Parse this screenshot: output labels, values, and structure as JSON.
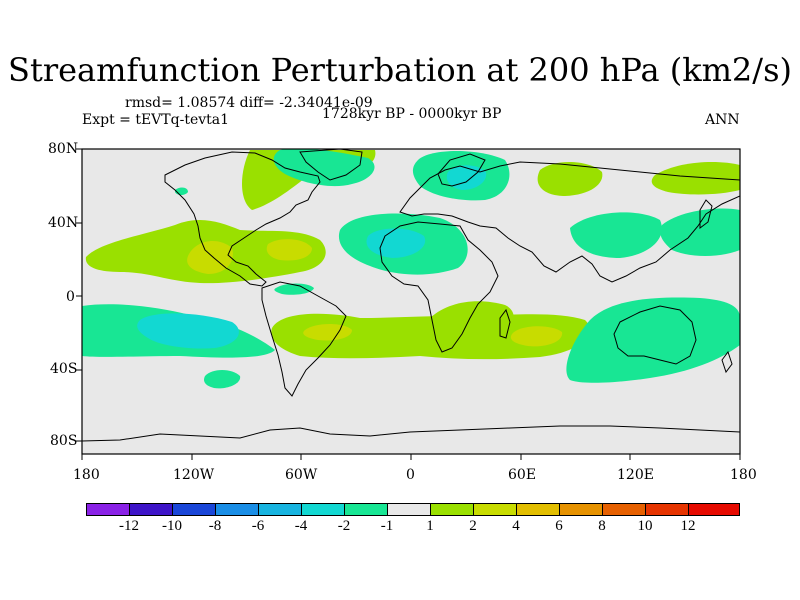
{
  "title": "Streamfunction Perturbation at 200 hPa (km2/s)",
  "stats": "rmsd= 1.08574 diff= -2.34041e-09",
  "expt": "Expt = tEVTq-tevta1",
  "period": "1728kyr BP - 0000kyr BP",
  "season": "ANN",
  "lat_labels": [
    "80N",
    "40N",
    "0",
    "40S",
    "80S"
  ],
  "lon_labels": [
    "180",
    "120W",
    "60W",
    "0",
    "60E",
    "120E",
    "180"
  ],
  "colorbar": {
    "labels": [
      "-12",
      "-10",
      "-8",
      "-6",
      "-4",
      "-2",
      "-1",
      "1",
      "2",
      "4",
      "6",
      "8",
      "10",
      "12"
    ],
    "colors": [
      "#8a22e6",
      "#3e14c8",
      "#1a46d8",
      "#1a8ee6",
      "#18b4e0",
      "#12d8d2",
      "#18e694",
      "#e8e8e8",
      "#9ae000",
      "#c8dc00",
      "#e2be00",
      "#e69200",
      "#e66000",
      "#e63400",
      "#e60a00"
    ]
  },
  "map_colors": {
    "background": "#e8e8e8",
    "coast": "#000000",
    "level_m1": "#18e694",
    "level_m2": "#12d8d2",
    "level_p1": "#9ae000",
    "level_p2": "#c8dc00"
  }
}
